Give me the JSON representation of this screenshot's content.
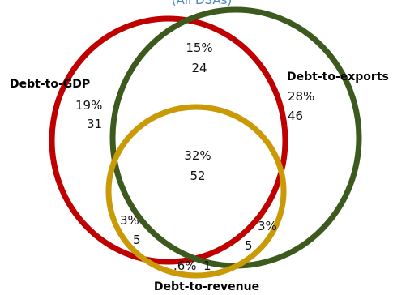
{
  "subtitle": "(All DSAs)",
  "sets": [
    {
      "key": "gdp",
      "label": "Debt-to-GDP",
      "color": "#c00000"
    },
    {
      "key": "exports",
      "label": "Debt-to-exports",
      "color": "#3c5a1e"
    },
    {
      "key": "revenue",
      "label": "Debt-to-revenue",
      "color": "#c99a06"
    }
  ],
  "regions": {
    "gdp_only": {
      "percent": "19%",
      "count": "31"
    },
    "exports_only": {
      "percent": "28%",
      "count": "46"
    },
    "gdp_exports": {
      "percent": "15%",
      "count": "24"
    },
    "all_three": {
      "percent": "32%",
      "count": "52"
    },
    "gdp_revenue": {
      "percent": "3%",
      "count": "5"
    },
    "exports_revenue": {
      "percent": "3%",
      "count": "5"
    },
    "revenue_only": {
      "percent": ".6%",
      "count": "1"
    }
  },
  "subtitle_color": "#4a86c5"
}
